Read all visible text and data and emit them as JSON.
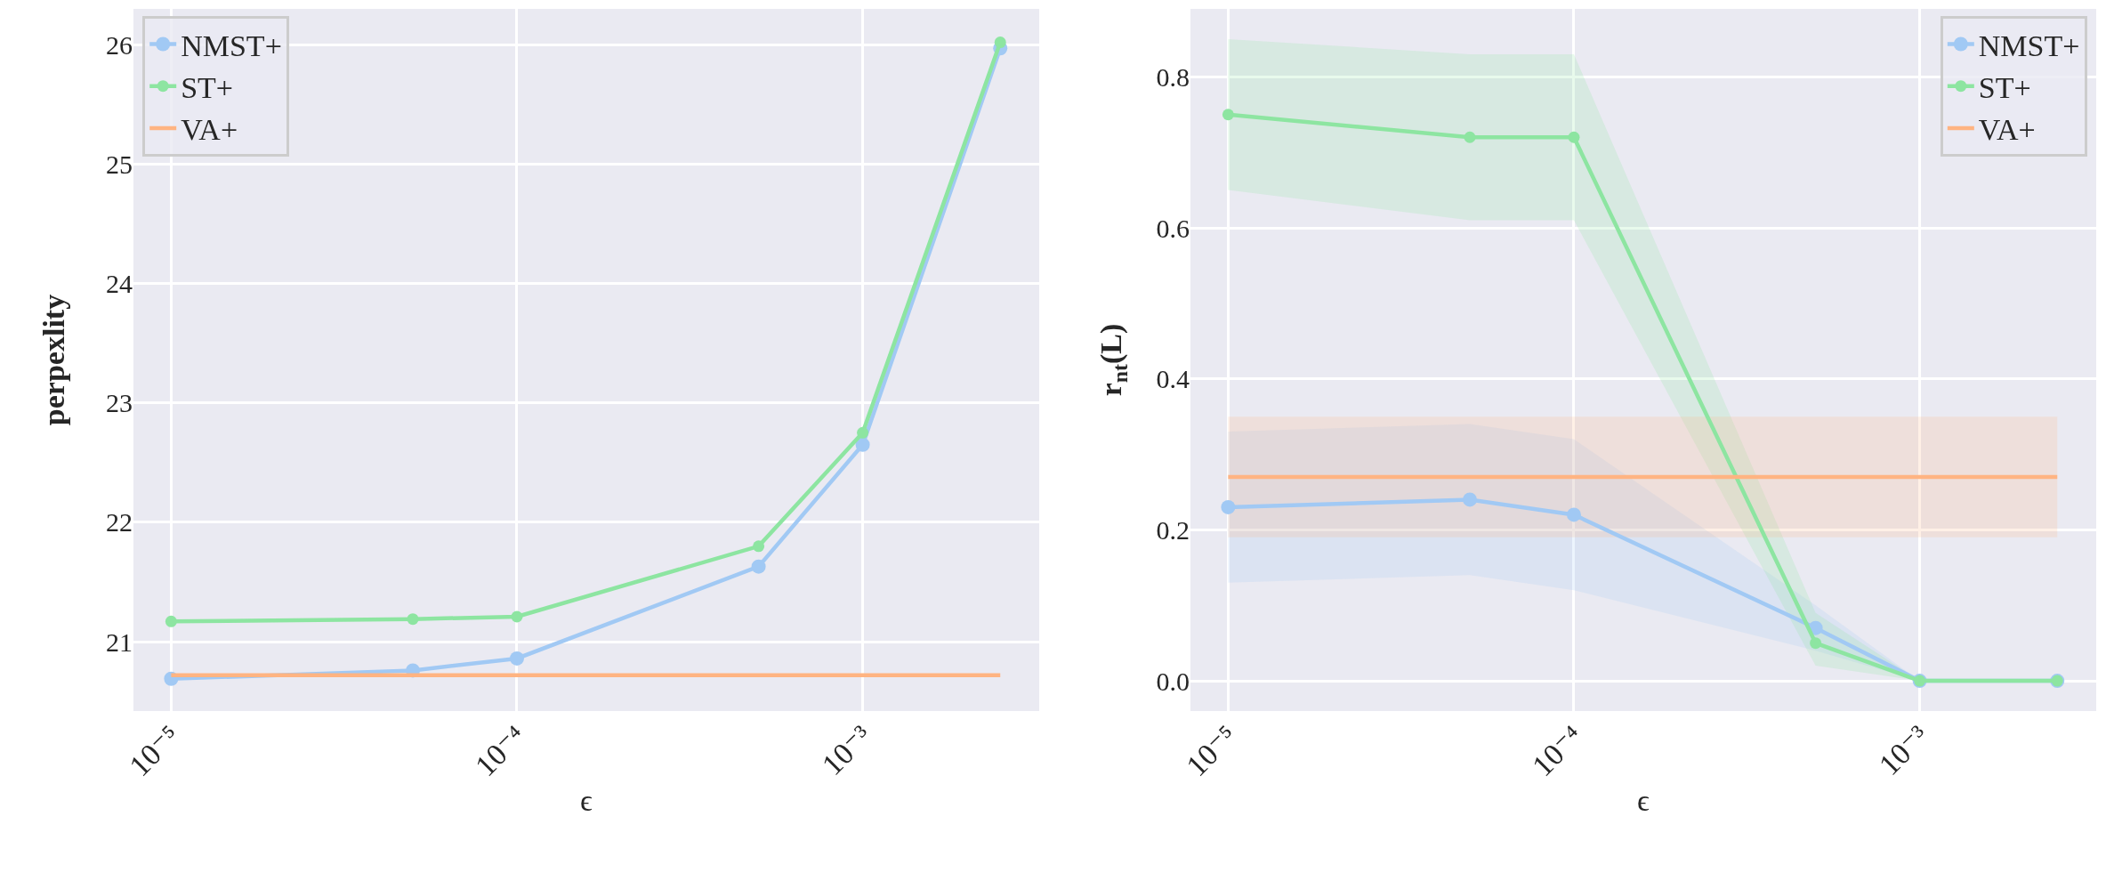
{
  "chart_data": [
    {
      "type": "line",
      "xlabel": "ϵ",
      "ylabel": "perpexlity",
      "log": "x",
      "grid": true,
      "legend": "top left",
      "line_style": "solid",
      "xlim": [
        7.78e-06,
        0.00324
      ],
      "xticks": [
        {
          "value": 1e-05,
          "label": "10⁻⁵"
        },
        {
          "value": 0.0001,
          "label": "10⁻⁴"
        },
        {
          "value": 0.001,
          "label": "10⁻³"
        }
      ],
      "ylim": [
        20.42,
        26.3
      ],
      "yticks": [
        21,
        22,
        23,
        24,
        25,
        26
      ],
      "series": [
        {
          "name": "NMST+",
          "color": "#a1c9f4",
          "marker": "circle",
          "x": [
            1e-05,
            5e-05,
            0.0001,
            0.0005,
            0.001,
            0.0025
          ],
          "values": [
            20.69,
            20.76,
            20.86,
            21.63,
            22.65,
            25.97
          ]
        },
        {
          "name": "ST+",
          "color": "#8de5a1",
          "marker": "circle",
          "x": [
            1e-05,
            5e-05,
            0.0001,
            0.0005,
            0.001,
            0.0025
          ],
          "values": [
            21.17,
            21.19,
            21.21,
            21.8,
            22.75,
            26.02
          ]
        },
        {
          "name": "VA+",
          "color": "#ffb482",
          "marker": "none",
          "x": [
            1e-05,
            0.0025
          ],
          "values": [
            20.72,
            20.72
          ]
        }
      ]
    },
    {
      "type": "line",
      "xlabel": "ϵ",
      "ylabel": "r$_{nt}$(L)",
      "log": "x",
      "grid": true,
      "legend": "top right",
      "line_style": "solid",
      "xlim": [
        7.78e-06,
        0.00324
      ],
      "xticks": [
        {
          "value": 1e-05,
          "label": "10⁻⁵"
        },
        {
          "value": 0.0001,
          "label": "10⁻⁴"
        },
        {
          "value": 0.001,
          "label": "10⁻³"
        }
      ],
      "ylim": [
        -0.04,
        0.89
      ],
      "yticks": [
        {
          "value": 0,
          "label": "0.0"
        },
        0.2,
        0.4,
        0.6,
        0.8
      ],
      "series": [
        {
          "name": "NMST+",
          "color": "#a1c9f4",
          "marker": "circle",
          "x": [
            1e-05,
            5e-05,
            0.0001,
            0.0005,
            0.001,
            0.0025
          ],
          "values": [
            0.23,
            0.24,
            0.22,
            0.07,
            0,
            0
          ],
          "lower": [
            0.13,
            0.14,
            0.12,
            0.04,
            0,
            0
          ],
          "upper": [
            0.33,
            0.34,
            0.32,
            0.1,
            0,
            0
          ]
        },
        {
          "name": "ST+",
          "color": "#8de5a1",
          "marker": "circle",
          "x": [
            1e-05,
            5e-05,
            0.0001,
            0.0005,
            0.001,
            0.0025
          ],
          "values": [
            0.75,
            0.72,
            0.72,
            0.05,
            0,
            0
          ],
          "lower": [
            0.65,
            0.61,
            0.61,
            0.02,
            0,
            0
          ],
          "upper": [
            0.85,
            0.83,
            0.83,
            0.09,
            0,
            0
          ]
        },
        {
          "name": "VA+",
          "color": "#ffb482",
          "marker": "none",
          "x": [
            1e-05,
            0.0025
          ],
          "values": [
            0.27,
            0.27
          ],
          "lower": [
            0.19,
            0.19
          ],
          "upper": [
            0.35,
            0.35
          ]
        }
      ]
    }
  ]
}
